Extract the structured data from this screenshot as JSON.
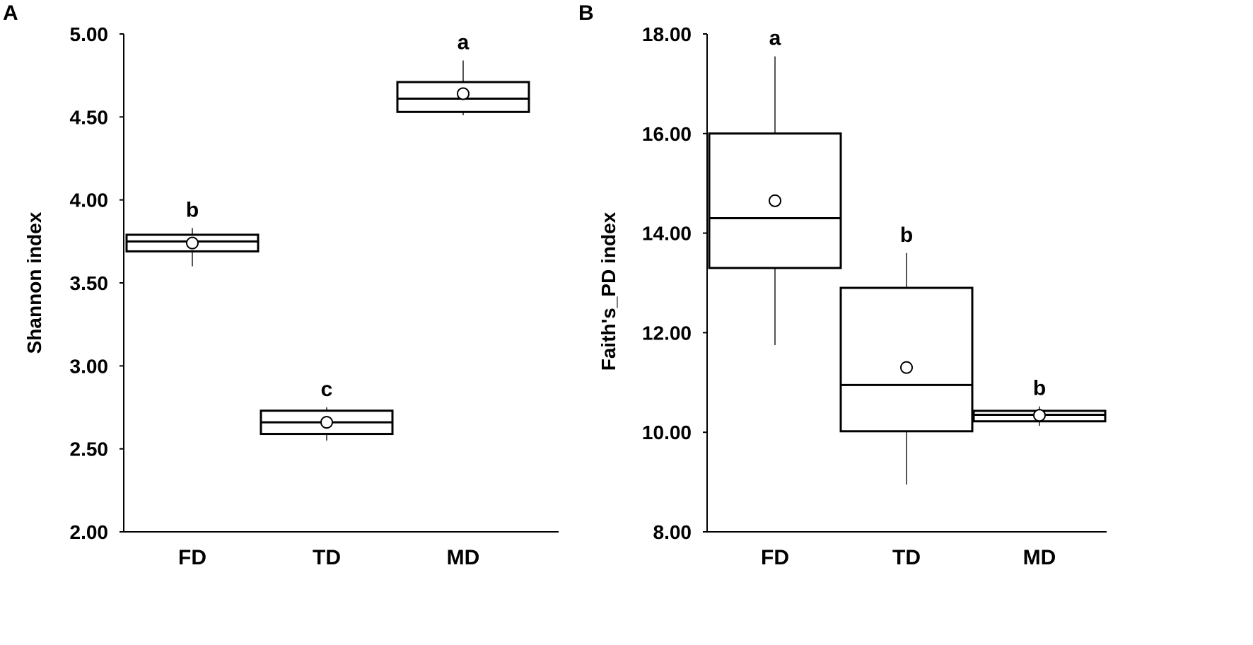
{
  "chart_data": [
    {
      "panel": "A",
      "type": "box",
      "ylabel": "Shannon index",
      "ylim": [
        2.0,
        5.0
      ],
      "yticks": [
        "2.00",
        "2.50",
        "3.00",
        "3.50",
        "4.00",
        "4.50",
        "5.00"
      ],
      "categories": [
        "FD",
        "TD",
        "MD"
      ],
      "boxes": [
        {
          "category": "FD",
          "min": 3.6,
          "q1": 3.69,
          "median": 3.75,
          "q3": 3.79,
          "max": 3.83,
          "mean": 3.74,
          "significance": "b"
        },
        {
          "category": "TD",
          "min": 2.55,
          "q1": 2.59,
          "median": 2.66,
          "q3": 2.73,
          "max": 2.75,
          "mean": 2.66,
          "significance": "c"
        },
        {
          "category": "MD",
          "min": 4.51,
          "q1": 4.53,
          "median": 4.61,
          "q3": 4.71,
          "max": 4.84,
          "mean": 4.64,
          "significance": "a"
        }
      ]
    },
    {
      "panel": "B",
      "type": "box",
      "ylabel": "Faith's_PD index",
      "ylim": [
        8.0,
        18.0
      ],
      "yticks": [
        "8.00",
        "10.00",
        "12.00",
        "14.00",
        "16.00",
        "18.00"
      ],
      "categories": [
        "FD",
        "TD",
        "MD"
      ],
      "boxes": [
        {
          "category": "FD",
          "min": 11.75,
          "q1": 13.3,
          "median": 14.3,
          "q3": 16.0,
          "max": 17.55,
          "mean": 14.65,
          "significance": "a"
        },
        {
          "category": "TD",
          "min": 8.95,
          "q1": 10.02,
          "median": 10.95,
          "q3": 12.9,
          "max": 13.6,
          "mean": 11.3,
          "significance": "b"
        },
        {
          "category": "MD",
          "min": 10.13,
          "q1": 10.22,
          "median": 10.35,
          "q3": 10.43,
          "max": 10.52,
          "mean": 10.34,
          "significance": "b"
        }
      ]
    }
  ]
}
